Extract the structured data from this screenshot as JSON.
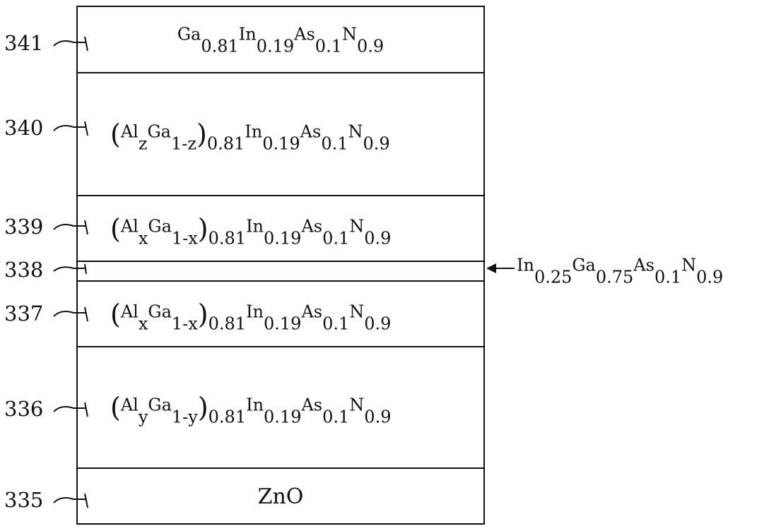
{
  "layers": {
    "l341": {
      "ref": "341",
      "f": [
        "Ga",
        "0.81",
        "In",
        "0.19",
        "As",
        "0.1",
        "N",
        "0.9"
      ]
    },
    "l340": {
      "ref": "340",
      "p1": "(",
      "al": "Al",
      "alsub": "z",
      "ga": "Ga",
      "gasub": "1-z",
      "p2": ")",
      "psub": "0.81",
      "in": "In",
      "insub": "0.19",
      "as": "As",
      "assub": "0.1",
      "n": "N",
      "nsub": "0.9"
    },
    "l339": {
      "ref": "339",
      "p1": "(",
      "al": "Al",
      "alsub": "x",
      "ga": "Ga",
      "gasub": "1-x",
      "p2": ")",
      "psub": "0.81",
      "in": "In",
      "insub": "0.19",
      "as": "As",
      "assub": "0.1",
      "n": "N",
      "nsub": "0.9"
    },
    "l338": {
      "ref": "338"
    },
    "l337": {
      "ref": "337",
      "p1": "(",
      "al": "Al",
      "alsub": "x",
      "ga": "Ga",
      "gasub": "1-x",
      "p2": ")",
      "psub": "0.81",
      "in": "In",
      "insub": "0.19",
      "as": "As",
      "assub": "0.1",
      "n": "N",
      "nsub": "0.9"
    },
    "l336": {
      "ref": "336",
      "p1": "(",
      "al": "Al",
      "alsub": "y",
      "ga": "Ga",
      "gasub": "1-y",
      "p2": ")",
      "psub": "0.81",
      "in": "In",
      "insub": "0.19",
      "as": "As",
      "assub": "0.1",
      "n": "N",
      "nsub": "0.9"
    },
    "l335": {
      "ref": "335",
      "label": "ZnO"
    }
  },
  "annotation_338": {
    "f": [
      "In",
      "0.25",
      "Ga",
      "0.75",
      "As",
      "0.1",
      "N",
      "0.9"
    ]
  }
}
